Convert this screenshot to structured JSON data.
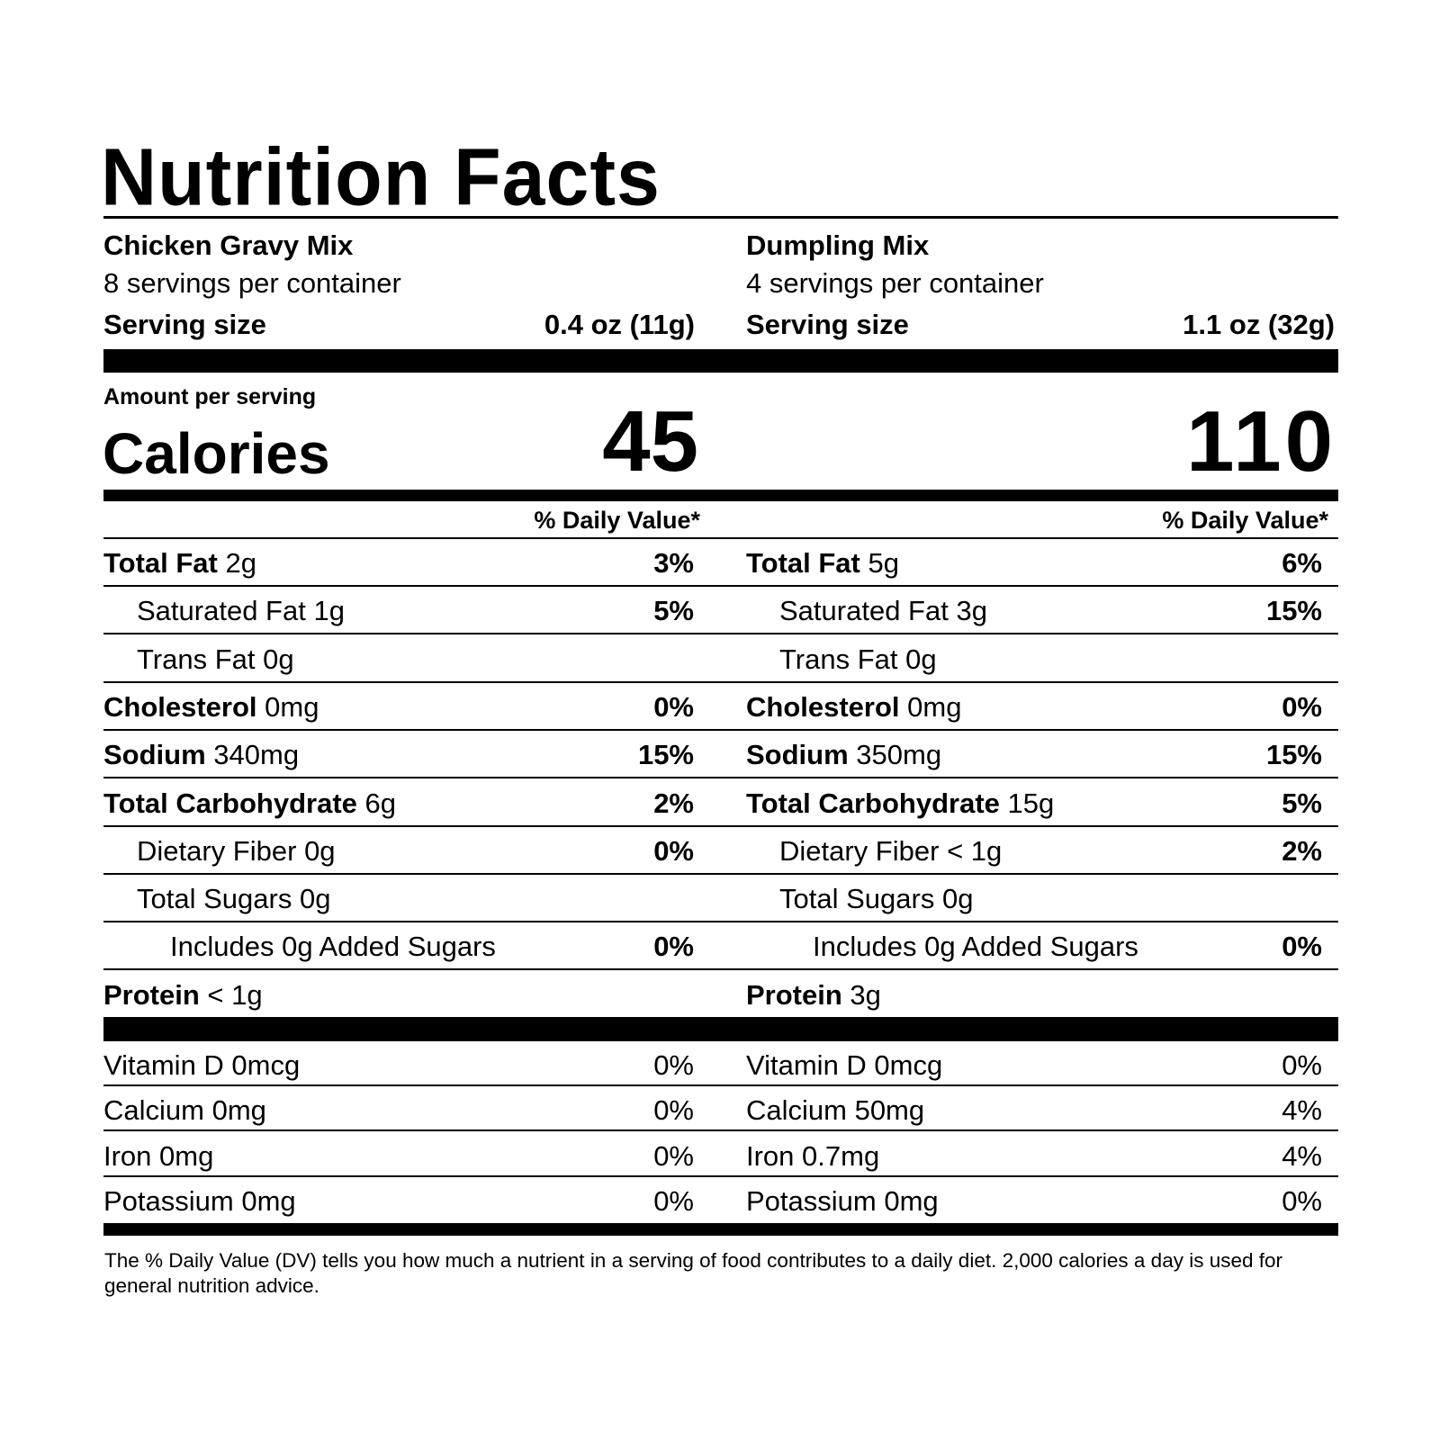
{
  "title": "Nutrition Facts",
  "footnote": "The % Daily Value (DV) tells you how much a nutrient in a serving of food contributes to a daily diet. 2,000 calories a day is used for general nutrition advice.",
  "amount_per_serving": "Amount per serving",
  "calories_label": "Calories",
  "serving_size_label": "Serving size",
  "daily_value_header": "% Daily Value*",
  "products": [
    {
      "name": "Chicken Gravy Mix",
      "servings": "8 servings per container",
      "serving_size": "0.4 oz (11g)",
      "calories": "45",
      "nutrients": [
        {
          "name": "Total Fat",
          "amount": "2g",
          "dv": "3%",
          "bold": true,
          "indent": 0
        },
        {
          "name": "Saturated Fat",
          "amount": "1g",
          "dv": "5%",
          "bold": false,
          "indent": 1
        },
        {
          "name": "Trans Fat",
          "amount": "0g",
          "dv": "",
          "bold": false,
          "indent": 1
        },
        {
          "name": "Cholesterol",
          "amount": "0mg",
          "dv": "0%",
          "bold": true,
          "indent": 0
        },
        {
          "name": "Sodium",
          "amount": "340mg",
          "dv": "15%",
          "bold": true,
          "indent": 0
        },
        {
          "name": "Total Carbohydrate",
          "amount": "6g",
          "dv": "2%",
          "bold": true,
          "indent": 0
        },
        {
          "name": "Dietary Fiber",
          "amount": "0g",
          "dv": "0%",
          "bold": false,
          "indent": 1
        },
        {
          "name": "Total Sugars",
          "amount": "0g",
          "dv": "",
          "bold": false,
          "indent": 1
        },
        {
          "name": "Includes 0g Added Sugars",
          "amount": "",
          "dv": "0%",
          "bold": false,
          "indent": 2
        },
        {
          "name": "Protein",
          "amount": "< 1g",
          "dv": "",
          "bold": true,
          "indent": 0
        }
      ],
      "vitamins": [
        {
          "name": "Vitamin D 0mcg",
          "dv": "0%"
        },
        {
          "name": "Calcium 0mg",
          "dv": "0%"
        },
        {
          "name": "Iron 0mg",
          "dv": "0%"
        },
        {
          "name": "Potassium 0mg",
          "dv": "0%"
        }
      ]
    },
    {
      "name": "Dumpling Mix",
      "servings": "4 servings per container",
      "serving_size": "1.1 oz (32g)",
      "calories": "110",
      "nutrients": [
        {
          "name": "Total Fat",
          "amount": "5g",
          "dv": "6%",
          "bold": true,
          "indent": 0
        },
        {
          "name": "Saturated Fat",
          "amount": "3g",
          "dv": "15%",
          "bold": false,
          "indent": 1
        },
        {
          "name": "Trans Fat",
          "amount": "0g",
          "dv": "",
          "bold": false,
          "indent": 1
        },
        {
          "name": "Cholesterol",
          "amount": "0mg",
          "dv": "0%",
          "bold": true,
          "indent": 0
        },
        {
          "name": "Sodium",
          "amount": "350mg",
          "dv": "15%",
          "bold": true,
          "indent": 0
        },
        {
          "name": "Total Carbohydrate",
          "amount": "15g",
          "dv": "5%",
          "bold": true,
          "indent": 0
        },
        {
          "name": "Dietary Fiber",
          "amount": "< 1g",
          "dv": "2%",
          "bold": false,
          "indent": 1
        },
        {
          "name": "Total Sugars",
          "amount": "0g",
          "dv": "",
          "bold": false,
          "indent": 1
        },
        {
          "name": "Includes 0g Added Sugars",
          "amount": "",
          "dv": "0%",
          "bold": false,
          "indent": 2
        },
        {
          "name": "Protein",
          "amount": "3g",
          "dv": "",
          "bold": true,
          "indent": 0
        }
      ],
      "vitamins": [
        {
          "name": "Vitamin D 0mcg",
          "dv": "0%"
        },
        {
          "name": "Calcium 50mg",
          "dv": "4%"
        },
        {
          "name": "Iron 0.7mg",
          "dv": "4%"
        },
        {
          "name": "Potassium 0mg",
          "dv": "0%"
        }
      ]
    }
  ]
}
